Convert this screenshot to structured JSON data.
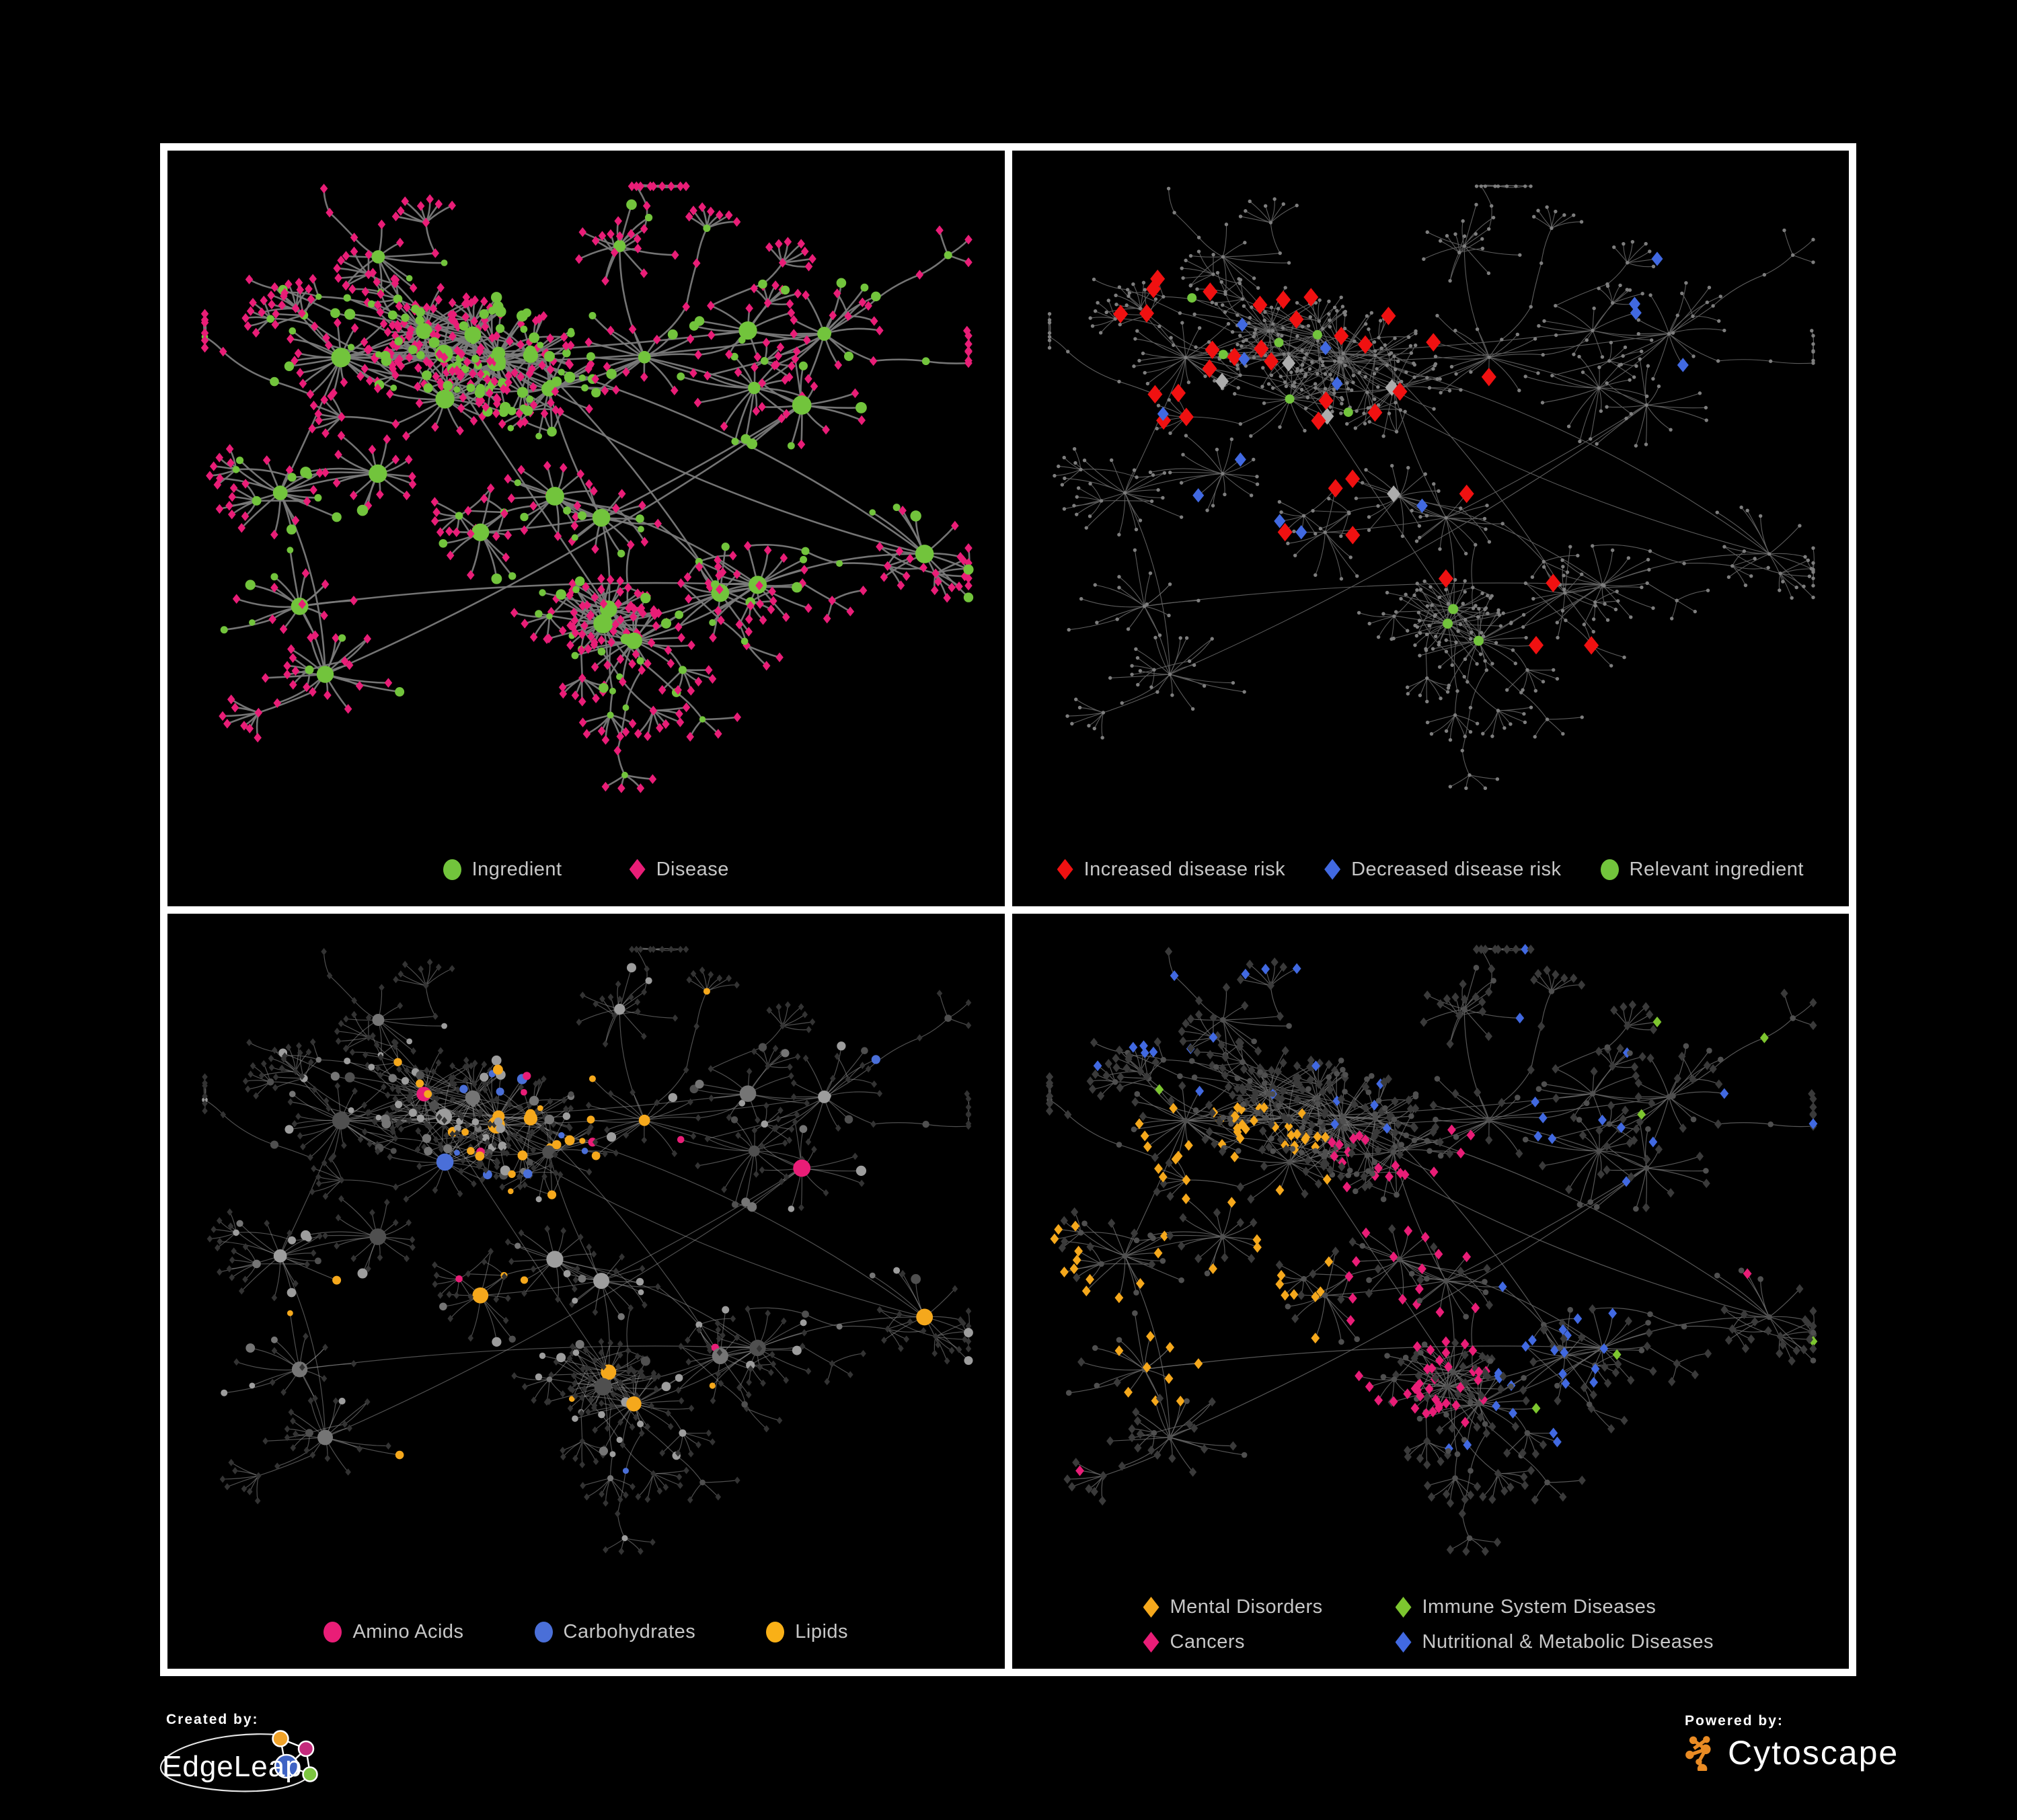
{
  "poster": {
    "background": "#000000",
    "frame_color": "#ffffff"
  },
  "panels": [
    {
      "id": "ingredient-disease-network",
      "legend": [
        {
          "label": "Ingredient",
          "shape": "circle",
          "color": "#72C43C"
        },
        {
          "label": "Disease",
          "shape": "diamond",
          "color": "#E91D77"
        }
      ],
      "style": {
        "edge": {
          "color": "#7A7A7A",
          "width": 2.6,
          "opacity": 0.95
        }
      }
    },
    {
      "id": "disease-risk-network",
      "legend": [
        {
          "label": "Increased disease risk",
          "shape": "diamond",
          "color": "#F01111"
        },
        {
          "label": "Decreased disease risk",
          "shape": "diamond",
          "color": "#4169E1"
        },
        {
          "label": "Relevant ingredient",
          "shape": "circle",
          "color": "#72C43C"
        }
      ],
      "style": {
        "edge": {
          "color": "#606060",
          "width": 1.1,
          "opacity": 0.95
        }
      }
    },
    {
      "id": "ingredient-class-network",
      "legend": [
        {
          "label": "Amino Acids",
          "shape": "circle",
          "color": "#E91D77"
        },
        {
          "label": "Carbohydrates",
          "shape": "circle",
          "color": "#4A6FD8"
        },
        {
          "label": "Lipids",
          "shape": "circle",
          "color": "#F9B017"
        }
      ],
      "style": {
        "edge": {
          "color": "#8F8F8F",
          "width": 1.2,
          "opacity": 0.55
        }
      }
    },
    {
      "id": "disease-category-network",
      "legend": [
        {
          "label": "Mental Disorders",
          "shape": "diamond",
          "color": "#F5A81C"
        },
        {
          "label": "Immune System Diseases",
          "shape": "diamond",
          "color": "#7DC62F"
        },
        {
          "label": "Cancers",
          "shape": "diamond",
          "color": "#E91D77"
        },
        {
          "label": "Nutritional & Metabolic Diseases",
          "shape": "diamond",
          "color": "#4169E1"
        }
      ],
      "style": {
        "edge": {
          "color": "#6C6C6C",
          "width": 1.2,
          "opacity": 0.8
        }
      }
    }
  ],
  "network": {
    "seed": 1337,
    "node_types": {
      "ingredient": "circle",
      "disease": "diamond"
    },
    "colors": {
      "green": "#72C43C",
      "pink": "#E91D77",
      "red": "#F01111",
      "blue": "#4169E1",
      "cblue": "#4A6FD8",
      "orange": "#F5A81C",
      "lime": "#7DC62F",
      "silver": "#ACACAC",
      "tiny": "#7E7E7E",
      "grey_light": "#9D9D9D",
      "grey_mid": "#757575",
      "grey_dark": "#4F4F4F",
      "dim_diamond": "#333333",
      "dim_diamond_alt": "#3A3A3A",
      "dim_circle": "#4F4F4F"
    }
  },
  "footer": {
    "created_by": {
      "label": "Created by:",
      "brand": "EdgeLeap",
      "logo_colors": {
        "orange": "#F0A32A",
        "magenta": "#C42A7C",
        "blue": "#3F63C4",
        "green": "#7CC540"
      }
    },
    "powered_by": {
      "label": "Powered by:",
      "brand": "Cytoscape",
      "logo_color": "#E98B24"
    }
  }
}
